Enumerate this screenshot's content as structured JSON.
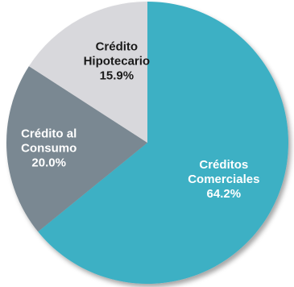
{
  "chart_data": {
    "type": "pie",
    "slices": [
      {
        "label": [
          "Créditos",
          "Comerciales"
        ],
        "value": 64.2,
        "display": "64.2%",
        "color": "#3eb0c4",
        "text_color": "#ffffff"
      },
      {
        "label": [
          "Crédito al",
          "Consumo"
        ],
        "value": 20.0,
        "display": "20.0%",
        "color": "#7a8892",
        "text_color": "#ffffff"
      },
      {
        "label": [
          "Crédito",
          "Hipotecario"
        ],
        "value": 15.9,
        "display": "15.9%",
        "color": "#d8d8dc",
        "text_color": "#1a1a1a"
      }
    ]
  }
}
